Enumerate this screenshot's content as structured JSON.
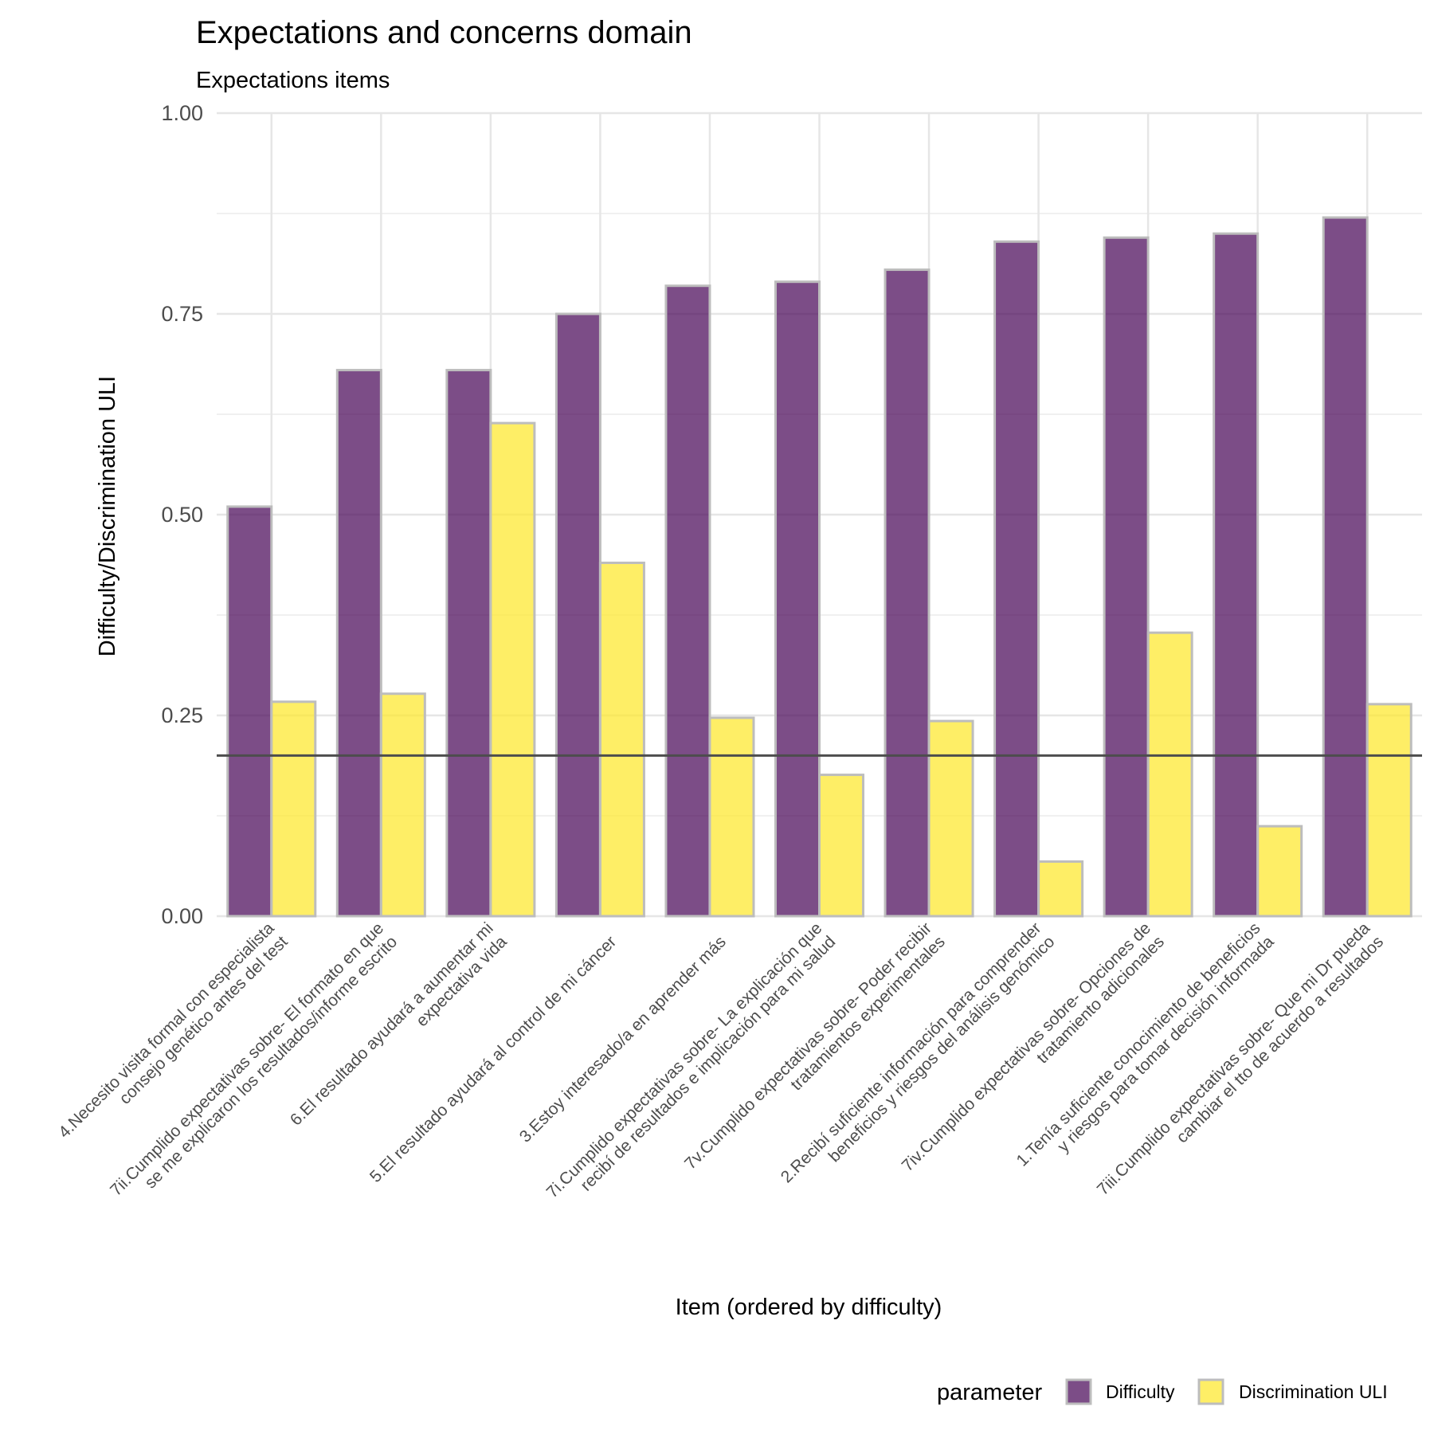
{
  "chart_data": {
    "type": "bar",
    "title": "Expectations and concerns domain",
    "subtitle": "Expectations items",
    "xlabel": "Item (ordered by difficulty)",
    "ylabel": "Difficulty/Discrimination ULI",
    "ylim": [
      0,
      1
    ],
    "yticks": [
      "0.00",
      "0.25",
      "0.50",
      "0.75",
      "1.00"
    ],
    "grid": true,
    "reference_line": 0.2,
    "legend": {
      "title": "parameter",
      "position": "bottom-right",
      "items": [
        "Difficulty",
        "Discrimination ULI"
      ]
    },
    "categories": [
      [
        "4.Necesito visita formal con especialista",
        "consejo genético antes del test"
      ],
      [
        "7ii.Cumplido expectativas sobre- El formato en que",
        "se me explicaron los resultados/informe escrito"
      ],
      [
        "6.El resultado ayudará a aumentar mi",
        "expectativa vida"
      ],
      [
        "5.El resultado ayudará al control de mi cáncer"
      ],
      [
        "3.Estoy interesado/a en aprender más"
      ],
      [
        "7i.Cumplido expectativas sobre- La explicación que",
        "recibí de resultados e implicación para mi salud"
      ],
      [
        "7v.Cumplido expectativas sobre- Poder recibir",
        "tratamientos experimentales"
      ],
      [
        "2.Recibí suficiente información para comprender",
        "beneficios y riesgos del análisis genómico"
      ],
      [
        "7iv.Cumplido expectativas sobre- Opciones de",
        "tratamiento adicionales"
      ],
      [
        "1.Tenía suficiente conocimiento de beneficios",
        "y riesgos para tomar decisión informada"
      ],
      [
        "7iii.Cumplido expectativas sobre- Que mi Dr pueda",
        "cambiar el tto de acuerdo a resultados"
      ]
    ],
    "series": [
      {
        "name": "Difficulty",
        "color": "#440154",
        "values": [
          0.51,
          0.68,
          0.68,
          0.75,
          0.785,
          0.79,
          0.805,
          0.84,
          0.845,
          0.85,
          0.87
        ]
      },
      {
        "name": "Discrimination ULI",
        "color": "#fde725",
        "values": [
          0.267,
          0.277,
          0.614,
          0.44,
          0.247,
          0.176,
          0.243,
          0.068,
          0.353,
          0.112,
          0.264
        ]
      }
    ]
  }
}
